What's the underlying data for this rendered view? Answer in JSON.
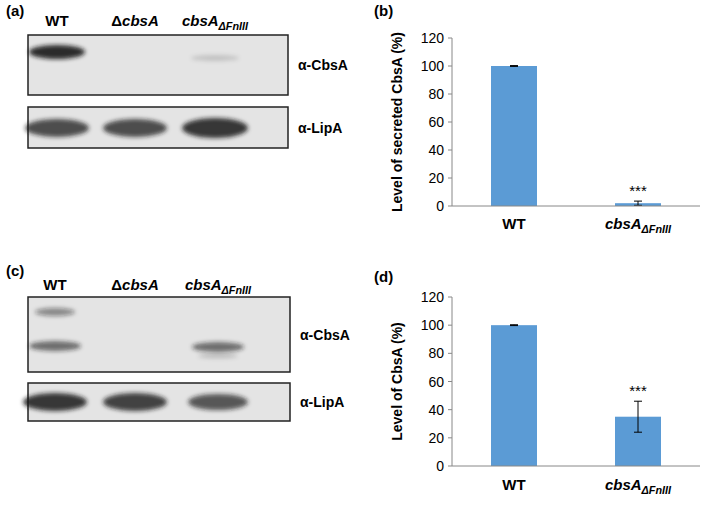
{
  "panel_labels": [
    "(a)",
    "(b)",
    "(c)",
    "(d)"
  ],
  "blots": [
    {
      "lanes": [
        "WT",
        "ΔcbsA",
        "cbsAΔFnIII"
      ],
      "antibodies": [
        "α-CbsA",
        "α-LipA"
      ]
    },
    {
      "lanes": [
        "WT",
        "ΔcbsA",
        "cbsAΔFnIII"
      ],
      "antibodies": [
        "α-CbsA",
        "α-LipA"
      ]
    }
  ],
  "chart_data": [
    {
      "type": "bar",
      "y_label": "Level of secreted CbsA (%)",
      "categories": [
        "WT",
        "cbsAΔFnIII"
      ],
      "values": [
        100,
        2
      ],
      "errors": [
        0.3,
        1.5
      ],
      "color": "#5b9bd5",
      "ylim": [
        0,
        120
      ],
      "yticks": [
        0,
        20,
        40,
        60,
        80,
        100,
        120
      ],
      "annotations": [
        {
          "category": "cbsAΔFnIII",
          "text": "***"
        }
      ]
    },
    {
      "type": "bar",
      "y_label": "Level of CbsA (%)",
      "categories": [
        "WT",
        "cbsAΔFnIII"
      ],
      "values": [
        100,
        35
      ],
      "errors": [
        0.3,
        11
      ],
      "color": "#5b9bd5",
      "ylim": [
        0,
        120
      ],
      "yticks": [
        0,
        20,
        40,
        60,
        80,
        100,
        120
      ],
      "annotations": [
        {
          "category": "cbsAΔFnIII",
          "text": "***"
        }
      ]
    }
  ]
}
